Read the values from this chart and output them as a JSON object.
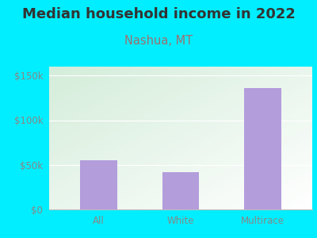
{
  "title": "Median household income in 2022",
  "subtitle": "Nashua, MT",
  "categories": [
    "All",
    "White",
    "Multirace"
  ],
  "values": [
    55000,
    42000,
    136000
  ],
  "bar_color": "#b39ddb",
  "background_color": "#00eeff",
  "title_color": "#333333",
  "subtitle_color": "#9e7070",
  "tick_color": "#888888",
  "ytick_labels": [
    "$0",
    "$50k",
    "$100k",
    "$150k"
  ],
  "ytick_values": [
    0,
    50000,
    100000,
    150000
  ],
  "ylim": [
    0,
    160000
  ],
  "title_fontsize": 13,
  "subtitle_fontsize": 10.5,
  "tick_fontsize": 8.5,
  "grid_color": "#ffffff",
  "plot_bg_left": "#d4eedc",
  "plot_bg_right": "#f5fff8"
}
